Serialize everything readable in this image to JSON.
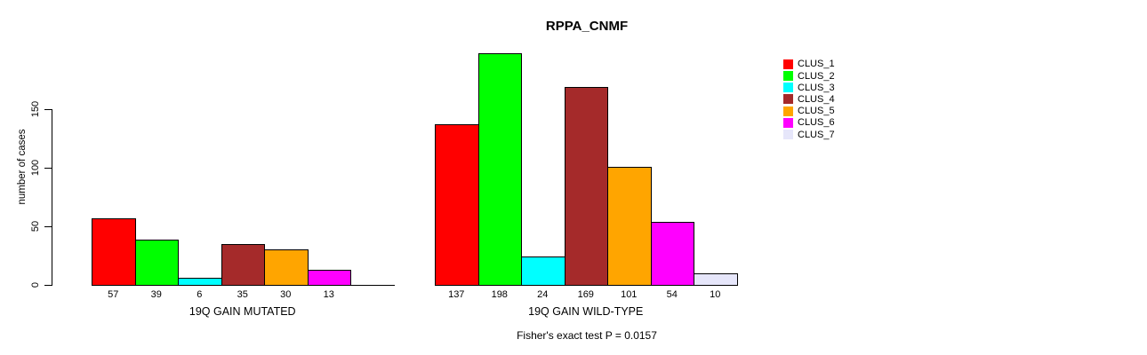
{
  "title": "RPPA_CNMF",
  "footer": "Fisher's exact test P = 0.0157",
  "chart_data": {
    "type": "bar",
    "title": "RPPA_CNMF",
    "xlabel": "",
    "ylabel": "number of cases",
    "ylim": [
      0,
      150
    ],
    "yticks": [
      0,
      50,
      100,
      150
    ],
    "grid": false,
    "legend_position": "top-right",
    "annotation": "Fisher's exact test P = 0.0157",
    "categories": [
      "19Q GAIN MUTATED",
      "19Q GAIN WILD-TYPE"
    ],
    "series": [
      {
        "name": "CLUS_1",
        "color": "#FF0000",
        "values": [
          57,
          137
        ]
      },
      {
        "name": "CLUS_2",
        "color": "#00FF00",
        "values": [
          39,
          198
        ]
      },
      {
        "name": "CLUS_3",
        "color": "#00FFFF",
        "values": [
          6,
          24
        ]
      },
      {
        "name": "CLUS_4",
        "color": "#A52A2A",
        "values": [
          35,
          169
        ]
      },
      {
        "name": "CLUS_5",
        "color": "#FFA500",
        "values": [
          30,
          101
        ]
      },
      {
        "name": "CLUS_6",
        "color": "#FF00FF",
        "values": [
          13,
          54
        ]
      },
      {
        "name": "CLUS_7",
        "color": "#E6E6FA",
        "values": [
          0,
          10
        ]
      }
    ],
    "bar_value_labels": [
      [
        "57",
        "39",
        "6",
        "35",
        "30",
        "13",
        ""
      ],
      [
        "137",
        "198",
        "24",
        "169",
        "101",
        "54",
        "10"
      ]
    ]
  }
}
